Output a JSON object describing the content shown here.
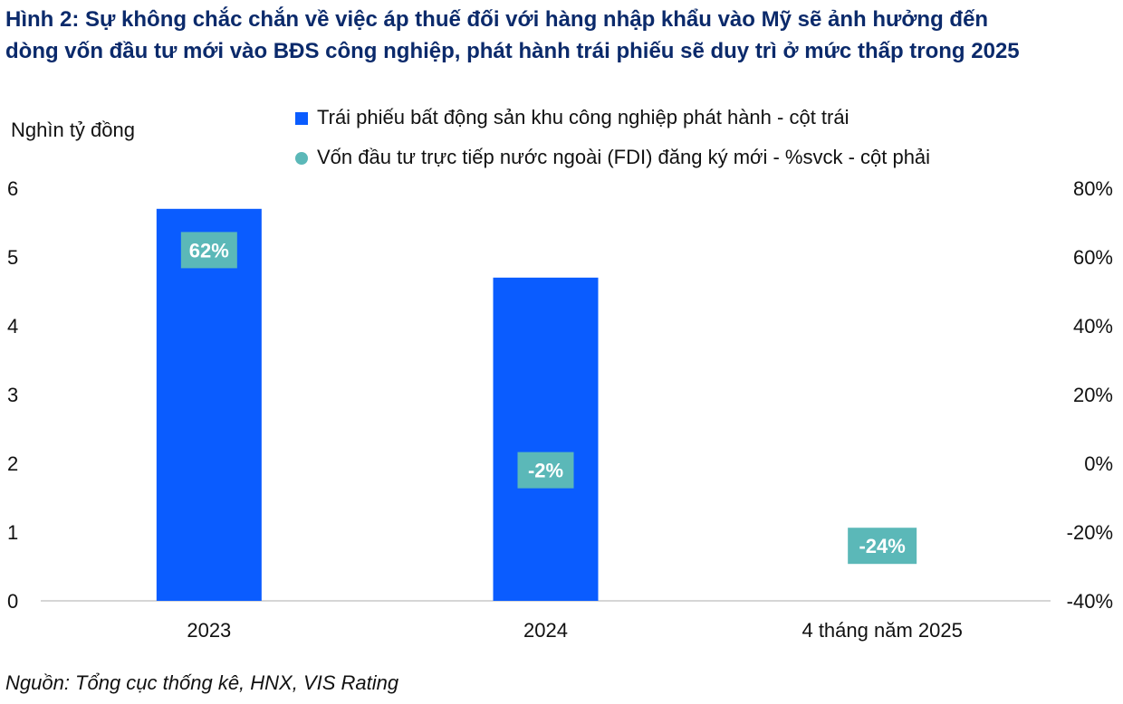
{
  "chart_data": {
    "type": "bar",
    "title_lines": [
      "Hình 2: Sự không chắc chắn về việc áp thuế đối với hàng nhập khẩu vào Mỹ sẽ ảnh hưởng đến",
      "dòng vốn đầu tư mới vào BĐS công nghiệp, phát hành trái phiếu sẽ duy trì ở mức thấp trong 2025"
    ],
    "ylabel": "Nghìn tỷ đồng",
    "categories": [
      "2023",
      "2024",
      "4 tháng năm 2025"
    ],
    "series": [
      {
        "name": "Trái phiếu bất động sản khu công nghiệp phát hành - cột trái",
        "kind": "bar",
        "axis": "left",
        "color": "#0a5cff",
        "values": [
          5.7,
          4.7,
          0
        ]
      },
      {
        "name": "Vốn đầu tư trực tiếp nước ngoài (FDI) đăng ký mới  - %svck - cột phải",
        "kind": "point",
        "axis": "right",
        "color": "#5bb8b8",
        "values": [
          62,
          -2,
          -24
        ],
        "labels": [
          "62%",
          "-2%",
          "-24%"
        ]
      }
    ],
    "y_left": {
      "min": 0,
      "max": 6,
      "ticks": [
        "0",
        "1",
        "2",
        "3",
        "4",
        "5",
        "6"
      ]
    },
    "y_right": {
      "min": -40,
      "max": 80,
      "ticks": [
        "-40%",
        "-20%",
        "0%",
        "20%",
        "40%",
        "60%",
        "80%"
      ]
    },
    "legend_position": "top",
    "source": "Nguồn: Tổng cục thống kê, HNX, VIS Rating"
  }
}
